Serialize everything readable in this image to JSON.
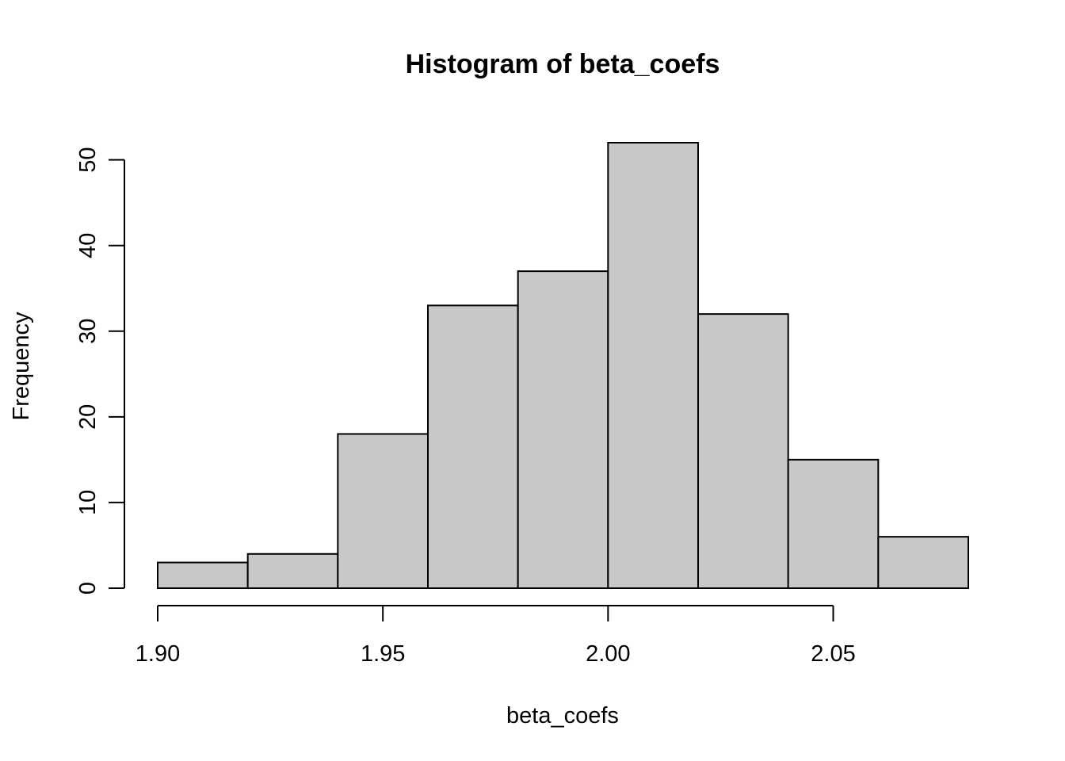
{
  "chart_data": {
    "type": "bar",
    "title": "Histogram of beta_coefs",
    "xlabel": "beta_coefs",
    "ylabel": "Frequency",
    "bins": [
      {
        "start": 1.9,
        "end": 1.92,
        "count": 3
      },
      {
        "start": 1.92,
        "end": 1.94,
        "count": 4
      },
      {
        "start": 1.94,
        "end": 1.96,
        "count": 18
      },
      {
        "start": 1.96,
        "end": 1.98,
        "count": 33
      },
      {
        "start": 1.98,
        "end": 2.0,
        "count": 37
      },
      {
        "start": 2.0,
        "end": 2.02,
        "count": 52
      },
      {
        "start": 2.02,
        "end": 2.04,
        "count": 32
      },
      {
        "start": 2.04,
        "end": 2.06,
        "count": 15
      },
      {
        "start": 2.06,
        "end": 2.08,
        "count": 6
      }
    ],
    "xticks": [
      {
        "value": 1.9,
        "label": "1.90"
      },
      {
        "value": 1.95,
        "label": "1.95"
      },
      {
        "value": 2.0,
        "label": "2.00"
      },
      {
        "value": 2.05,
        "label": "2.05"
      }
    ],
    "yticks": [
      {
        "value": 0,
        "label": "0"
      },
      {
        "value": 10,
        "label": "10"
      },
      {
        "value": 20,
        "label": "20"
      },
      {
        "value": 30,
        "label": "30"
      },
      {
        "value": 40,
        "label": "40"
      },
      {
        "value": 50,
        "label": "50"
      }
    ],
    "xlim": [
      1.9,
      2.08
    ],
    "ylim": [
      0,
      52
    ],
    "grid": false,
    "legend": "none",
    "colors": {
      "bar_fill": "#c8c8c8",
      "bar_stroke": "#000000"
    }
  }
}
